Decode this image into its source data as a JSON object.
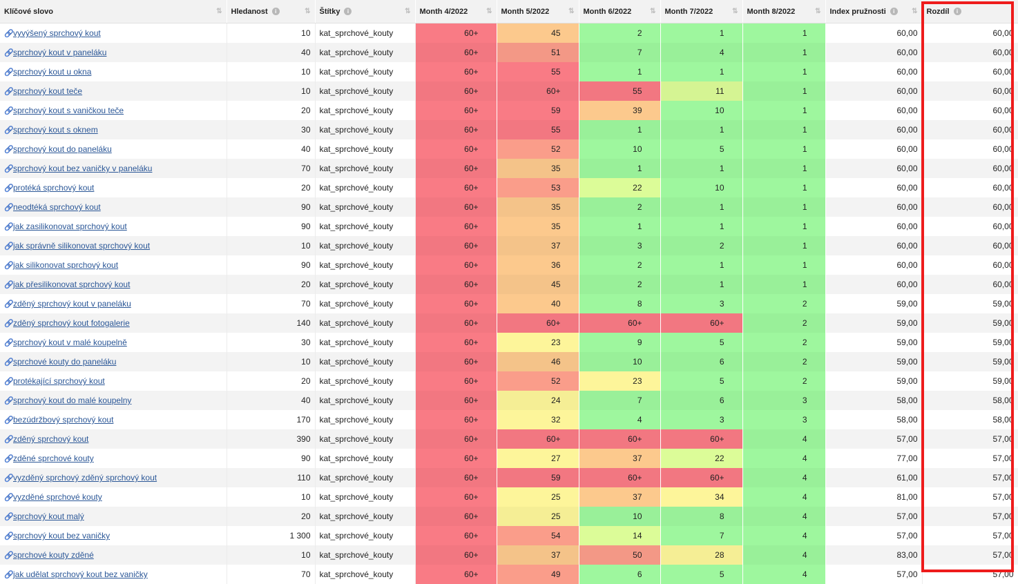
{
  "columns": [
    {
      "label": "Klíčové slovo",
      "info": false,
      "sort": "⇅",
      "sort_active": false
    },
    {
      "label": "Hledanost",
      "info": true,
      "sort": "⇅",
      "sort_active": false
    },
    {
      "label": "Štítky",
      "info": true,
      "sort": "⇅",
      "sort_active": false
    },
    {
      "label": "Month 4/2022",
      "info": false,
      "sort": "⇅",
      "sort_active": false
    },
    {
      "label": "Month 5/2022",
      "info": false,
      "sort": "⇅",
      "sort_active": false
    },
    {
      "label": "Month 6/2022",
      "info": false,
      "sort": "⇅",
      "sort_active": false
    },
    {
      "label": "Month 7/2022",
      "info": false,
      "sort": "⇅",
      "sort_active": false
    },
    {
      "label": "Month 8/2022",
      "info": false,
      "sort": "⇅",
      "sort_active": false
    },
    {
      "label": "Index pružnosti",
      "info": true,
      "sort": "⇅",
      "sort_active": false
    },
    {
      "label": "Rozdíl",
      "info": true,
      "sort": "↓",
      "sort_active": true
    }
  ],
  "colors": {
    "link": "#2b5797",
    "highlight_border": "#ee1c1c",
    "heat_scale": [
      "#9ef79e",
      "#dcfc98",
      "#fdf59a",
      "#fcc98d",
      "#fa9d8a",
      "#f97b85"
    ]
  },
  "rows": [
    {
      "keyword": "vyvýšený sprchový kout",
      "searches": "10",
      "tag": "kat_sprchové_kouty",
      "months": [
        "60+",
        "45",
        "2",
        "1",
        "1"
      ],
      "index": "60,00",
      "diff": "60,00"
    },
    {
      "keyword": "sprchový kout v paneláku",
      "searches": "40",
      "tag": "kat_sprchové_kouty",
      "months": [
        "60+",
        "51",
        "7",
        "4",
        "1"
      ],
      "index": "60,00",
      "diff": "60,00"
    },
    {
      "keyword": "sprchový kout u okna",
      "searches": "10",
      "tag": "kat_sprchové_kouty",
      "months": [
        "60+",
        "55",
        "1",
        "1",
        "1"
      ],
      "index": "60,00",
      "diff": "60,00"
    },
    {
      "keyword": "sprchový kout teče",
      "searches": "10",
      "tag": "kat_sprchové_kouty",
      "months": [
        "60+",
        "60+",
        "55",
        "11",
        "1"
      ],
      "index": "60,00",
      "diff": "60,00"
    },
    {
      "keyword": "sprchový kout s vaničkou teče",
      "searches": "20",
      "tag": "kat_sprchové_kouty",
      "months": [
        "60+",
        "59",
        "39",
        "10",
        "1"
      ],
      "index": "60,00",
      "diff": "60,00"
    },
    {
      "keyword": "sprchový kout s oknem",
      "searches": "30",
      "tag": "kat_sprchové_kouty",
      "months": [
        "60+",
        "55",
        "1",
        "1",
        "1"
      ],
      "index": "60,00",
      "diff": "60,00"
    },
    {
      "keyword": "sprchový kout do paneláku",
      "searches": "40",
      "tag": "kat_sprchové_kouty",
      "months": [
        "60+",
        "52",
        "10",
        "5",
        "1"
      ],
      "index": "60,00",
      "diff": "60,00"
    },
    {
      "keyword": "sprchový kout bez vaničky v paneláku",
      "searches": "70",
      "tag": "kat_sprchové_kouty",
      "months": [
        "60+",
        "35",
        "1",
        "1",
        "1"
      ],
      "index": "60,00",
      "diff": "60,00"
    },
    {
      "keyword": "protéká sprchový kout",
      "searches": "20",
      "tag": "kat_sprchové_kouty",
      "months": [
        "60+",
        "53",
        "22",
        "10",
        "1"
      ],
      "index": "60,00",
      "diff": "60,00"
    },
    {
      "keyword": "neodtéká sprchový kout",
      "searches": "90",
      "tag": "kat_sprchové_kouty",
      "months": [
        "60+",
        "35",
        "2",
        "1",
        "1"
      ],
      "index": "60,00",
      "diff": "60,00"
    },
    {
      "keyword": "jak zasilikonovat sprchový kout",
      "searches": "90",
      "tag": "kat_sprchové_kouty",
      "months": [
        "60+",
        "35",
        "1",
        "1",
        "1"
      ],
      "index": "60,00",
      "diff": "60,00"
    },
    {
      "keyword": "jak správně silikonovat sprchový kout",
      "searches": "10",
      "tag": "kat_sprchové_kouty",
      "months": [
        "60+",
        "37",
        "3",
        "2",
        "1"
      ],
      "index": "60,00",
      "diff": "60,00"
    },
    {
      "keyword": "jak silikonovat sprchový kout",
      "searches": "90",
      "tag": "kat_sprchové_kouty",
      "months": [
        "60+",
        "36",
        "2",
        "1",
        "1"
      ],
      "index": "60,00",
      "diff": "60,00"
    },
    {
      "keyword": "jak přesilikonovat sprchový kout",
      "searches": "20",
      "tag": "kat_sprchové_kouty",
      "months": [
        "60+",
        "45",
        "2",
        "1",
        "1"
      ],
      "index": "60,00",
      "diff": "60,00"
    },
    {
      "keyword": "zděný sprchový kout v paneláku",
      "searches": "70",
      "tag": "kat_sprchové_kouty",
      "months": [
        "60+",
        "40",
        "8",
        "3",
        "2"
      ],
      "index": "59,00",
      "diff": "59,00"
    },
    {
      "keyword": "zděný sprchový kout fotogalerie",
      "searches": "140",
      "tag": "kat_sprchové_kouty",
      "months": [
        "60+",
        "60+",
        "60+",
        "60+",
        "2"
      ],
      "index": "59,00",
      "diff": "59,00"
    },
    {
      "keyword": "sprchový kout v malé koupelně",
      "searches": "30",
      "tag": "kat_sprchové_kouty",
      "months": [
        "60+",
        "23",
        "9",
        "5",
        "2"
      ],
      "index": "59,00",
      "diff": "59,00"
    },
    {
      "keyword": "sprchové kouty do paneláku",
      "searches": "10",
      "tag": "kat_sprchové_kouty",
      "months": [
        "60+",
        "46",
        "10",
        "6",
        "2"
      ],
      "index": "59,00",
      "diff": "59,00"
    },
    {
      "keyword": "protékající sprchový kout",
      "searches": "20",
      "tag": "kat_sprchové_kouty",
      "months": [
        "60+",
        "52",
        "23",
        "5",
        "2"
      ],
      "index": "59,00",
      "diff": "59,00"
    },
    {
      "keyword": "sprchový kout do malé koupelny",
      "searches": "40",
      "tag": "kat_sprchové_kouty",
      "months": [
        "60+",
        "24",
        "7",
        "6",
        "3"
      ],
      "index": "58,00",
      "diff": "58,00"
    },
    {
      "keyword": "bezúdržbový sprchový kout",
      "searches": "170",
      "tag": "kat_sprchové_kouty",
      "months": [
        "60+",
        "32",
        "4",
        "3",
        "3"
      ],
      "index": "58,00",
      "diff": "58,00"
    },
    {
      "keyword": "zděný sprchový kout",
      "searches": "390",
      "tag": "kat_sprchové_kouty",
      "months": [
        "60+",
        "60+",
        "60+",
        "60+",
        "4"
      ],
      "index": "57,00",
      "diff": "57,00"
    },
    {
      "keyword": "zděné sprchové kouty",
      "searches": "90",
      "tag": "kat_sprchové_kouty",
      "months": [
        "60+",
        "27",
        "37",
        "22",
        "4"
      ],
      "index": "77,00",
      "diff": "57,00"
    },
    {
      "keyword": "vyzděný sprchový zděný sprchový kout",
      "searches": "110",
      "tag": "kat_sprchové_kouty",
      "months": [
        "60+",
        "59",
        "60+",
        "60+",
        "4"
      ],
      "index": "61,00",
      "diff": "57,00"
    },
    {
      "keyword": "vyzděné sprchové kouty",
      "searches": "10",
      "tag": "kat_sprchové_kouty",
      "months": [
        "60+",
        "25",
        "37",
        "34",
        "4"
      ],
      "index": "81,00",
      "diff": "57,00"
    },
    {
      "keyword": "sprchový kout malý",
      "searches": "20",
      "tag": "kat_sprchové_kouty",
      "months": [
        "60+",
        "25",
        "10",
        "8",
        "4"
      ],
      "index": "57,00",
      "diff": "57,00"
    },
    {
      "keyword": "sprchový kout bez vaničky",
      "searches": "1 300",
      "tag": "kat_sprchové_kouty",
      "months": [
        "60+",
        "54",
        "14",
        "7",
        "4"
      ],
      "index": "57,00",
      "diff": "57,00"
    },
    {
      "keyword": "sprchové kouty zděné",
      "searches": "10",
      "tag": "kat_sprchové_kouty",
      "months": [
        "60+",
        "37",
        "50",
        "28",
        "4"
      ],
      "index": "83,00",
      "diff": "57,00"
    },
    {
      "keyword": "jak udělat sprchový kout bez vaničky",
      "searches": "70",
      "tag": "kat_sprchové_kouty",
      "months": [
        "60+",
        "49",
        "6",
        "5",
        "4"
      ],
      "index": "57,00",
      "diff": "57,00"
    }
  ]
}
